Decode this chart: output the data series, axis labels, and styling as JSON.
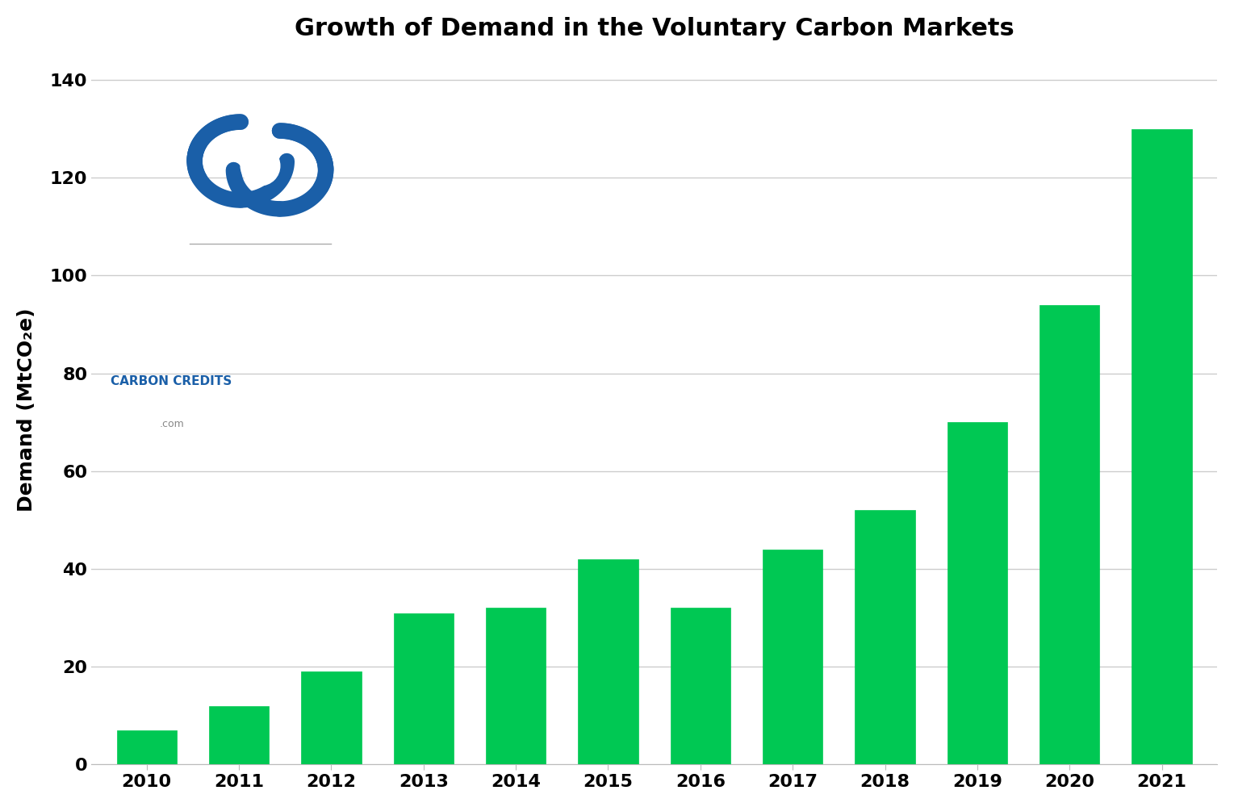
{
  "title": "Growth of Demand in the Voluntary Carbon Markets",
  "title_fontsize": 22,
  "title_fontweight": "bold",
  "years": [
    2010,
    2011,
    2012,
    2013,
    2014,
    2015,
    2016,
    2017,
    2018,
    2019,
    2020,
    2021
  ],
  "values": [
    7,
    12,
    19,
    31,
    32,
    42,
    32,
    44,
    52,
    70,
    94,
    130
  ],
  "bar_color": "#00C853",
  "bar_edge_color": "#00C853",
  "ylabel": "Demand (MtCO₂e)",
  "ylabel_fontsize": 18,
  "ylabel_fontweight": "bold",
  "ylim": [
    0,
    145
  ],
  "yticks": [
    0,
    20,
    40,
    60,
    80,
    100,
    120,
    140
  ],
  "xtick_fontsize": 16,
  "ytick_fontsize": 16,
  "grid_color": "#cccccc",
  "grid_linewidth": 1.0,
  "background_color": "#ffffff",
  "bar_width": 0.65,
  "logo_color": "#1a5fa8",
  "logo_text_color": "#1a5fa8",
  "logo_subtext_color": "#888888"
}
